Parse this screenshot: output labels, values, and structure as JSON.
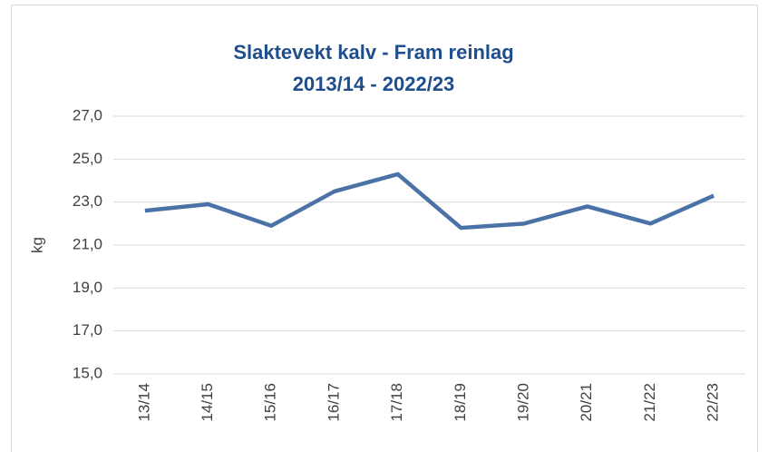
{
  "chart_data": {
    "type": "line",
    "title": "Slaktevekt kalv - Fram reinlag",
    "subtitle": "2013/14 - 2022/23",
    "y_label": "kg",
    "categories": [
      "13/14",
      "14/15",
      "15/16",
      "16/17",
      "17/18",
      "18/19",
      "19/20",
      "20/21",
      "21/22",
      "22/23"
    ],
    "series": [
      {
        "name": "Slaktevekt kalv",
        "color": "#4a72a6",
        "values": [
          22.6,
          22.9,
          21.9,
          23.5,
          24.3,
          21.8,
          22.0,
          22.8,
          22.0,
          23.3
        ]
      }
    ],
    "ylim": [
      15,
      27
    ],
    "yticks": [
      {
        "value": 15,
        "label": "15,0"
      },
      {
        "value": 17,
        "label": "17,0"
      },
      {
        "value": 19,
        "label": "19,0"
      },
      {
        "value": 21,
        "label": "21,0"
      },
      {
        "value": 23,
        "label": "23,0"
      },
      {
        "value": 25,
        "label": "25,0"
      },
      {
        "value": 27,
        "label": "27,0"
      }
    ],
    "grid": true
  }
}
